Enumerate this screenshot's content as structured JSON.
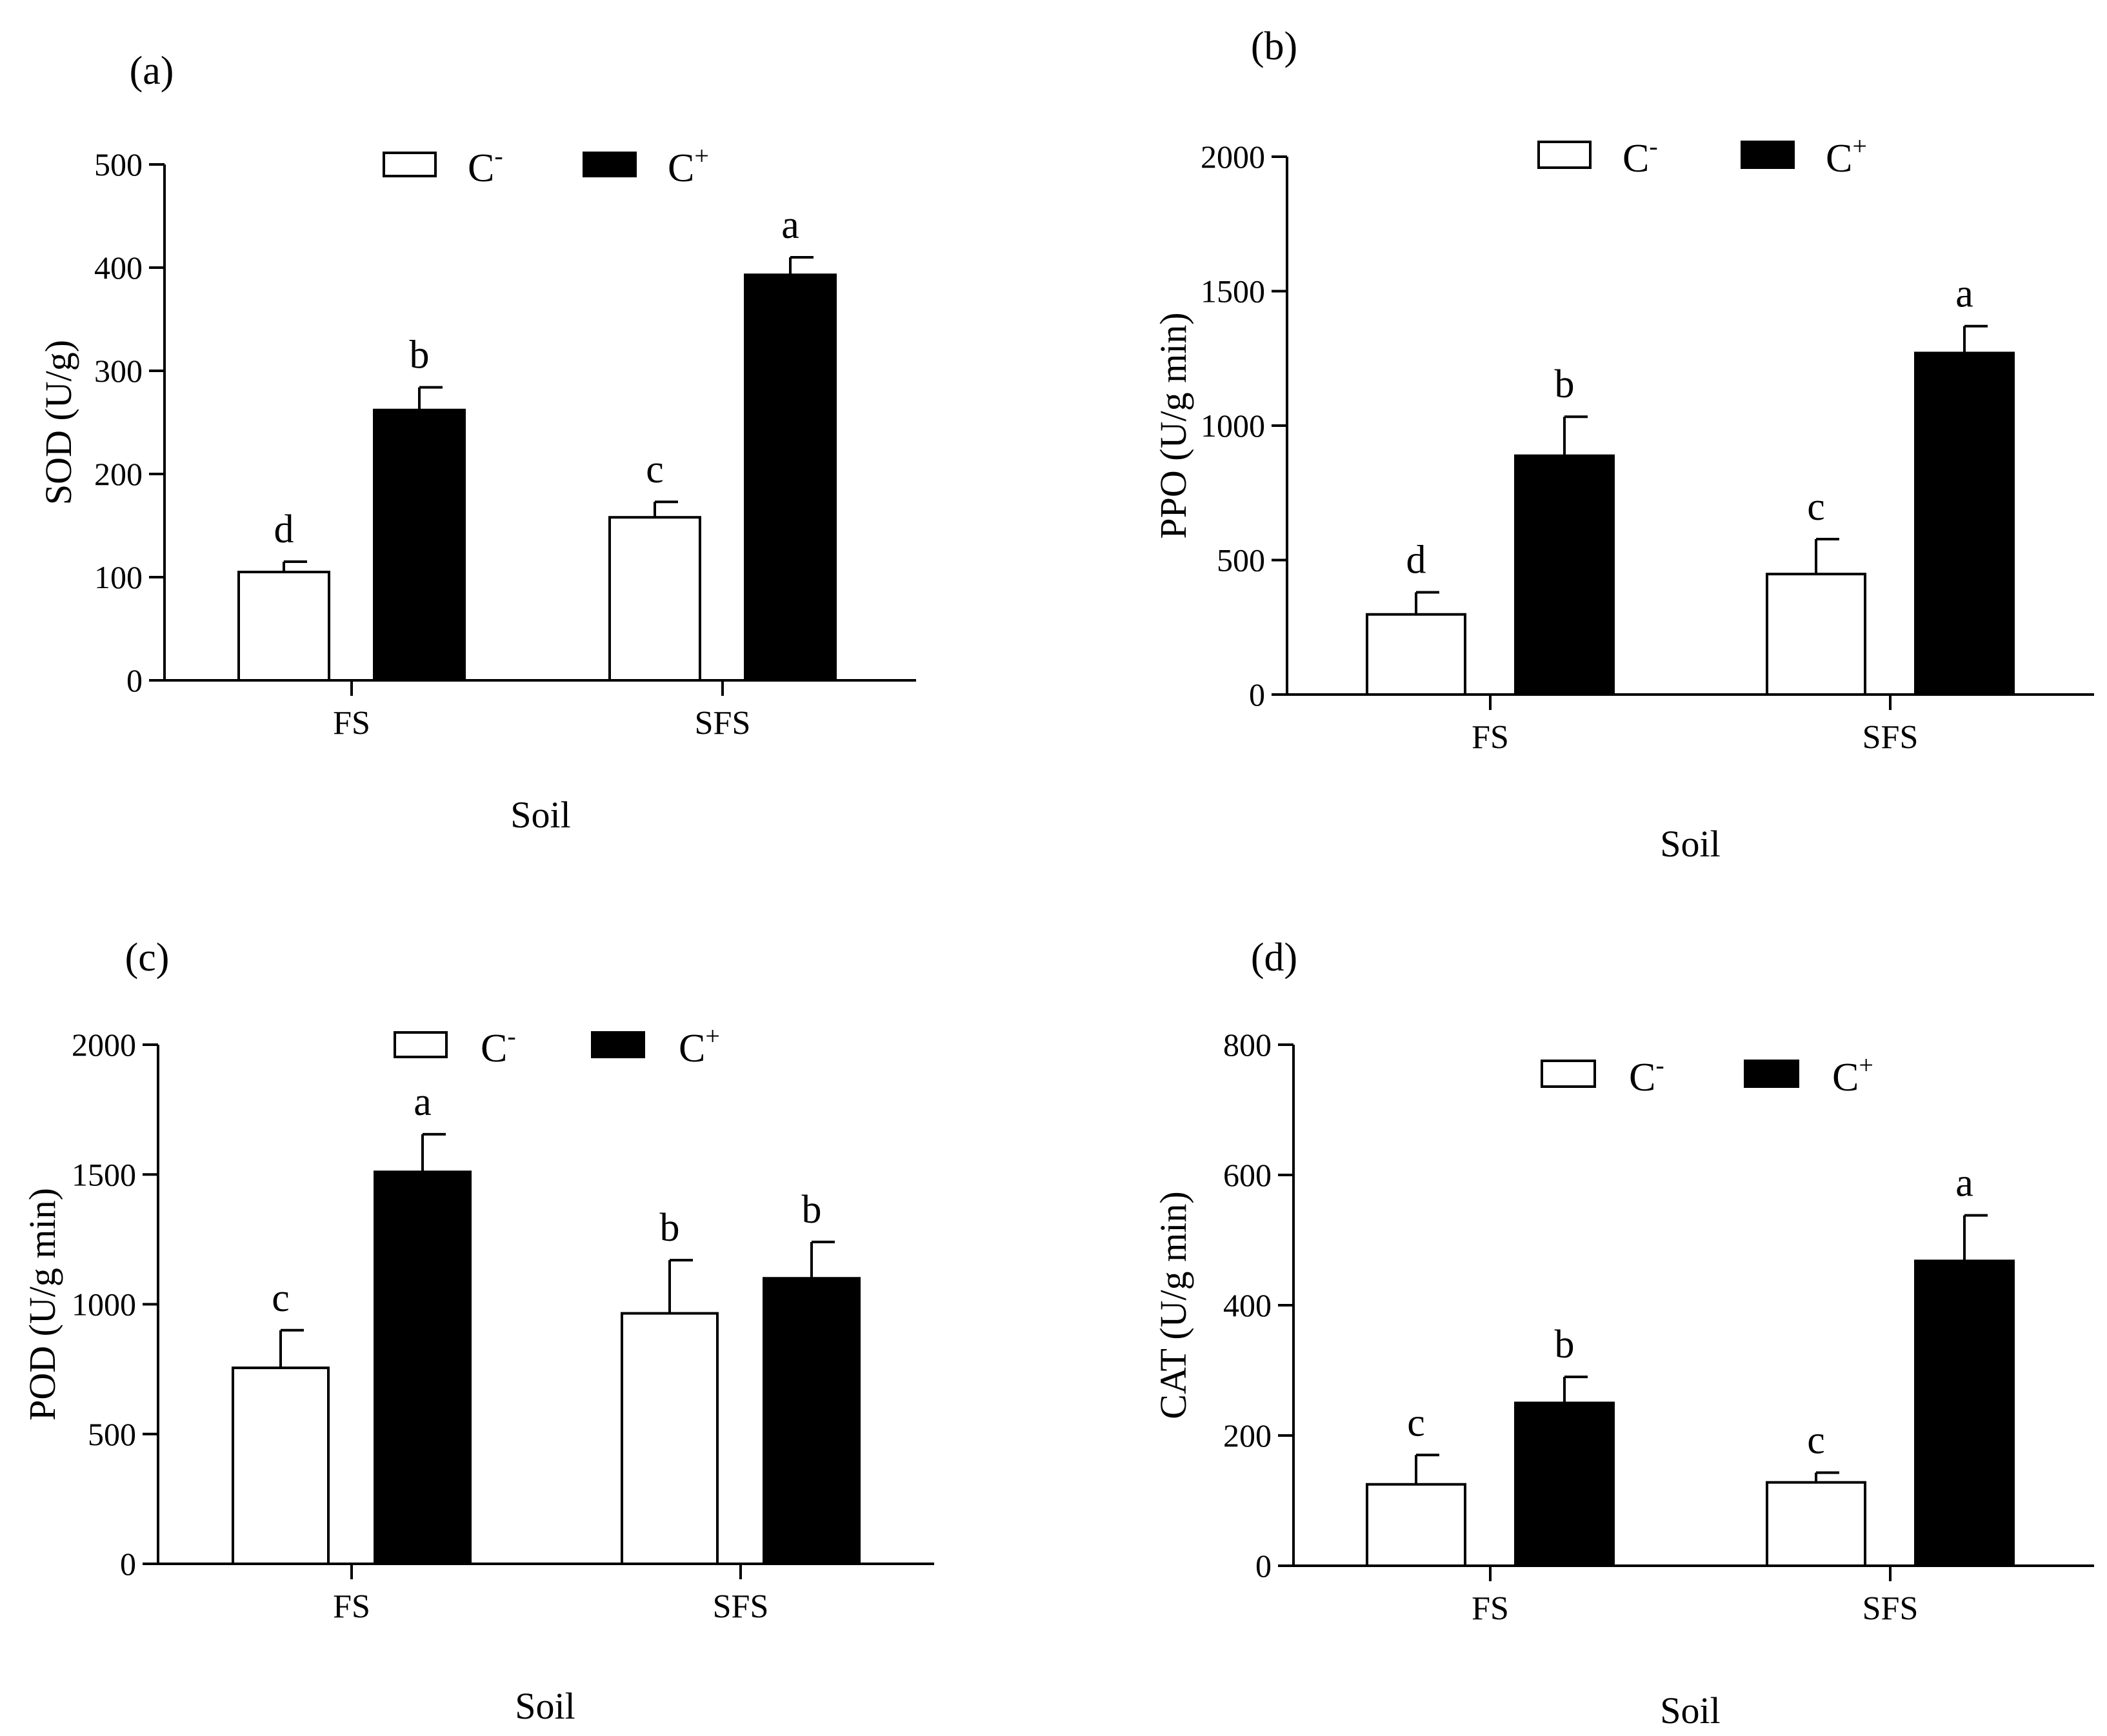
{
  "legend": {
    "series_names": [
      "C-",
      "C+"
    ],
    "colors": {
      "C-": "#ffffff",
      "C+": "#000000"
    }
  },
  "chart_data": [
    {
      "panel": "(a)",
      "type": "bar",
      "title": "",
      "xlabel": "Soil",
      "ylabel": "SOD (U/g)",
      "categories": [
        "FS",
        "SFS"
      ],
      "ylim": [
        0,
        500
      ],
      "yticks": [
        0,
        100,
        200,
        300,
        400,
        500
      ],
      "series": [
        {
          "name": "C-",
          "values": [
            105,
            158
          ],
          "errors": [
            10,
            15
          ],
          "letters": [
            "d",
            "c"
          ]
        },
        {
          "name": "C+",
          "values": [
            262,
            393
          ],
          "errors": [
            22,
            17
          ],
          "letters": [
            "b",
            "a"
          ]
        }
      ]
    },
    {
      "panel": "(b)",
      "type": "bar",
      "title": "",
      "xlabel": "Soil",
      "ylabel": "PPO (U/g min)",
      "categories": [
        "FS",
        "SFS"
      ],
      "ylim": [
        0,
        2000
      ],
      "yticks": [
        0,
        500,
        1000,
        1500,
        2000
      ],
      "series": [
        {
          "name": "C-",
          "values": [
            298,
            448
          ],
          "errors": [
            82,
            130
          ],
          "letters": [
            "d",
            "c"
          ]
        },
        {
          "name": "C+",
          "values": [
            888,
            1270
          ],
          "errors": [
            145,
            100
          ],
          "letters": [
            "b",
            "a"
          ]
        }
      ]
    },
    {
      "panel": "(c)",
      "type": "bar",
      "title": "",
      "xlabel": "Soil",
      "ylabel": "POD (U/g min)",
      "categories": [
        "FS",
        "SFS"
      ],
      "ylim": [
        0,
        2000
      ],
      "yticks": [
        0,
        500,
        1000,
        1500,
        2000
      ],
      "series": [
        {
          "name": "C-",
          "values": [
            755,
            965
          ],
          "errors": [
            145,
            205
          ],
          "letters": [
            "c",
            "b"
          ]
        },
        {
          "name": "C+",
          "values": [
            1510,
            1100
          ],
          "errors": [
            145,
            140
          ],
          "letters": [
            "a",
            "b"
          ]
        }
      ]
    },
    {
      "panel": "(d)",
      "type": "bar",
      "title": "",
      "xlabel": "Soil",
      "ylabel": "CAT (U/g min)",
      "categories": [
        "FS",
        "SFS"
      ],
      "ylim": [
        0,
        800
      ],
      "yticks": [
        0,
        200,
        400,
        600,
        800
      ],
      "series": [
        {
          "name": "C-",
          "values": [
            125,
            128
          ],
          "errors": [
            45,
            15
          ],
          "letters": [
            "c",
            "c"
          ]
        },
        {
          "name": "C+",
          "values": [
            250,
            468
          ],
          "errors": [
            40,
            70
          ],
          "letters": [
            "b",
            "a"
          ]
        }
      ]
    }
  ]
}
